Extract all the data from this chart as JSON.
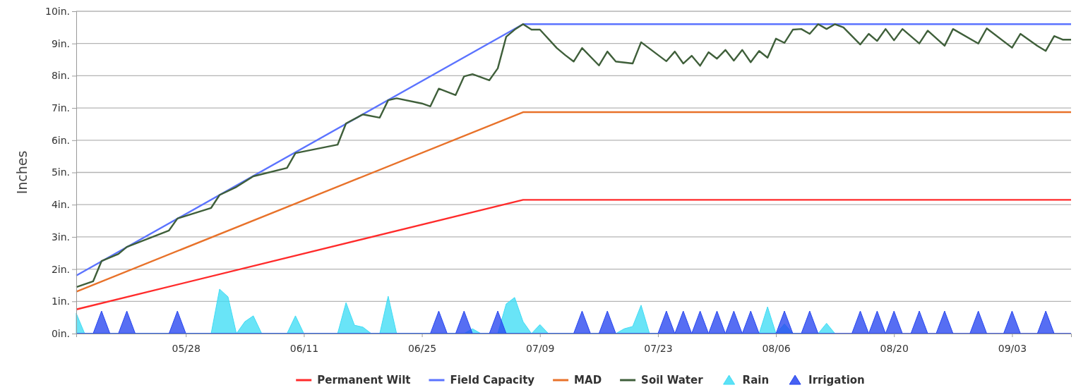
{
  "chart_data": {
    "type": "line",
    "ylabel": "Inches",
    "xlim": [
      "--05-15",
      "--09-10"
    ],
    "xticks": [
      {
        "value": "--05-28",
        "label": "05/28"
      },
      {
        "value": "--06-11",
        "label": "06/11"
      },
      {
        "value": "--06-25",
        "label": "06/25"
      },
      {
        "value": "--07-09",
        "label": "07/09"
      },
      {
        "value": "--07-23",
        "label": "07/23"
      },
      {
        "value": "--08-06",
        "label": "08/06"
      },
      {
        "value": "--08-20",
        "label": "08/20"
      },
      {
        "value": "--09-03",
        "label": "09/03"
      }
    ],
    "ylim": [
      0,
      10
    ],
    "yticks": [
      {
        "value": 0,
        "label": "0in."
      },
      {
        "value": 1,
        "label": "1in."
      },
      {
        "value": 2,
        "label": "2in."
      },
      {
        "value": 3,
        "label": "3in."
      },
      {
        "value": 4,
        "label": "4in."
      },
      {
        "value": 5,
        "label": "5in."
      },
      {
        "value": 6,
        "label": "6in."
      },
      {
        "value": 7,
        "label": "7in."
      },
      {
        "value": 8,
        "label": "8in."
      },
      {
        "value": 9,
        "label": "9in."
      },
      {
        "value": 10,
        "label": "10in."
      }
    ],
    "grid": "y",
    "legend": "bottom",
    "marker": "none",
    "series": [
      {
        "name": "Permanent Wilt",
        "color": "#ff2b2b",
        "x": [
          "--05-15",
          "--07-07",
          "--09-10"
        ],
        "values": [
          0.75,
          4.15,
          4.15
        ]
      },
      {
        "name": "Field Capacity",
        "color": "#5b73ff",
        "x": [
          "--05-15",
          "--07-07",
          "--09-10"
        ],
        "values": [
          1.8,
          9.6,
          9.6
        ]
      },
      {
        "name": "MAD",
        "color": "#e8722a",
        "x": [
          "--05-15",
          "--07-07",
          "--09-10"
        ],
        "values": [
          1.3,
          6.87,
          6.87
        ]
      },
      {
        "name": "Soil Water",
        "color": "#3f5f3a",
        "x": [
          "--05-15",
          "--05-17",
          "--05-18",
          "--05-20",
          "--05-21",
          "--05-26",
          "--05-27",
          "--05-31",
          "--06-01",
          "--06-03",
          "--06-05",
          "--06-09",
          "--06-10",
          "--06-15",
          "--06-16",
          "--06-18",
          "--06-20",
          "--06-21",
          "--06-22",
          "--06-25",
          "--06-26",
          "--06-27",
          "--06-29",
          "--06-30",
          "--07-01",
          "--07-03",
          "--07-04",
          "--07-05",
          "--07-06",
          "--07-07",
          "--07-08",
          "--07-09",
          "--07-11",
          "--07-12",
          "--07-13",
          "--07-14",
          "--07-16",
          "--07-17",
          "--07-18",
          "--07-20",
          "--07-21",
          "--07-24",
          "--07-25",
          "--07-26",
          "--07-27",
          "--07-28",
          "--07-29",
          "--07-30",
          "--07-31",
          "--08-01",
          "--08-02",
          "--08-03",
          "--08-04",
          "--08-05",
          "--08-06",
          "--08-07",
          "--08-08",
          "--08-09",
          "--08-10",
          "--08-11",
          "--08-12",
          "--08-13",
          "--08-14",
          "--08-16",
          "--08-17",
          "--08-18",
          "--08-19",
          "--08-20",
          "--08-21",
          "--08-23",
          "--08-24",
          "--08-26",
          "--08-27",
          "--08-30",
          "--08-31",
          "--09-03",
          "--09-04",
          "--09-06",
          "--09-07",
          "--09-08",
          "--09-09",
          "--09-10"
        ],
        "values": [
          1.44,
          1.62,
          2.25,
          2.47,
          2.69,
          3.2,
          3.57,
          3.9,
          4.3,
          4.55,
          4.88,
          5.14,
          5.6,
          5.86,
          6.52,
          6.8,
          6.7,
          7.24,
          7.3,
          7.14,
          7.05,
          7.6,
          7.4,
          7.98,
          8.05,
          7.86,
          8.23,
          9.21,
          9.43,
          9.6,
          9.43,
          9.43,
          8.86,
          8.64,
          8.44,
          8.86,
          8.32,
          8.75,
          8.44,
          8.38,
          9.04,
          8.45,
          8.75,
          8.38,
          8.62,
          8.31,
          8.73,
          8.53,
          8.8,
          8.47,
          8.8,
          8.42,
          8.77,
          8.56,
          9.15,
          9.02,
          9.43,
          9.45,
          9.3,
          9.6,
          9.45,
          9.6,
          9.5,
          8.97,
          9.3,
          9.08,
          9.45,
          9.1,
          9.45,
          9.0,
          9.4,
          8.93,
          9.45,
          9.0,
          9.47,
          8.87,
          9.3,
          8.93,
          8.77,
          9.23,
          9.12,
          9.12
        ]
      },
      {
        "name": "Rain",
        "type": "area",
        "color": "#3fdcf5",
        "x": [
          "--05-15",
          "--05-16",
          "--05-31",
          "--06-01",
          "--06-02",
          "--06-03",
          "--06-04",
          "--06-05",
          "--06-06",
          "--06-09",
          "--06-10",
          "--06-11",
          "--06-15",
          "--06-16",
          "--06-17",
          "--06-18",
          "--06-19",
          "--06-20",
          "--06-21",
          "--06-22",
          "--06-30",
          "--07-01",
          "--07-02",
          "--07-04",
          "--07-05",
          "--07-06",
          "--07-07",
          "--07-08",
          "--07-09",
          "--07-10",
          "--07-18",
          "--07-19",
          "--07-20",
          "--07-21",
          "--07-22",
          "--08-04",
          "--08-05",
          "--08-06",
          "--08-07",
          "--08-08",
          "--08-09",
          "--08-11",
          "--08-12",
          "--08-13"
        ],
        "values": [
          0.63,
          0,
          0,
          1.38,
          1.14,
          0,
          0.37,
          0.55,
          0,
          0,
          0.55,
          0,
          0,
          0.96,
          0.26,
          0.2,
          0,
          0,
          1.16,
          0,
          0,
          0.15,
          0,
          0,
          0.92,
          1.12,
          0.37,
          0,
          0.28,
          0,
          0,
          0.15,
          0.22,
          0.88,
          0,
          0,
          0.83,
          0,
          0.3,
          0,
          0,
          0,
          0.32,
          0
        ]
      },
      {
        "name": "Irrigation",
        "type": "area",
        "color": "#2645f0",
        "x": [
          "--05-15",
          "--05-17",
          "--05-18",
          "--05-19",
          "--05-20",
          "--05-21",
          "--05-22",
          "--05-26",
          "--05-27",
          "--05-28",
          "--06-26",
          "--06-27",
          "--06-28",
          "--06-29",
          "--06-30",
          "--07-01",
          "--07-03",
          "--07-04",
          "--07-05",
          "--07-13",
          "--07-14",
          "--07-15",
          "--07-16",
          "--07-17",
          "--07-18",
          "--07-23",
          "--07-24",
          "--07-25",
          "--07-26",
          "--07-27",
          "--07-28",
          "--07-29",
          "--07-30",
          "--07-31",
          "--08-01",
          "--08-02",
          "--08-03",
          "--08-04",
          "--08-06",
          "--08-07",
          "--08-08",
          "--08-09",
          "--08-10",
          "--08-11",
          "--08-15",
          "--08-16",
          "--08-17",
          "--08-18",
          "--08-19",
          "--08-20",
          "--08-21",
          "--08-22",
          "--08-23",
          "--08-24",
          "--08-25",
          "--08-26",
          "--08-27",
          "--08-29",
          "--08-30",
          "--08-31",
          "--09-02",
          "--09-03",
          "--09-04",
          "--09-06",
          "--09-07",
          "--09-08",
          "--09-10"
        ],
        "values": [
          0,
          0,
          0.7,
          0,
          0,
          0.7,
          0,
          0,
          0.7,
          0,
          0,
          0.7,
          0,
          0,
          0.7,
          0,
          0,
          0.7,
          0,
          0,
          0.7,
          0,
          0,
          0.7,
          0,
          0,
          0.7,
          0,
          0.7,
          0,
          0.7,
          0,
          0.7,
          0,
          0.7,
          0,
          0.7,
          0,
          0,
          0.7,
          0,
          0,
          0.7,
          0,
          0,
          0.7,
          0,
          0.7,
          0,
          0.7,
          0,
          0,
          0.7,
          0,
          0,
          0.7,
          0,
          0,
          0.7,
          0,
          0,
          0.7,
          0,
          0,
          0.7,
          0,
          0
        ]
      }
    ]
  }
}
